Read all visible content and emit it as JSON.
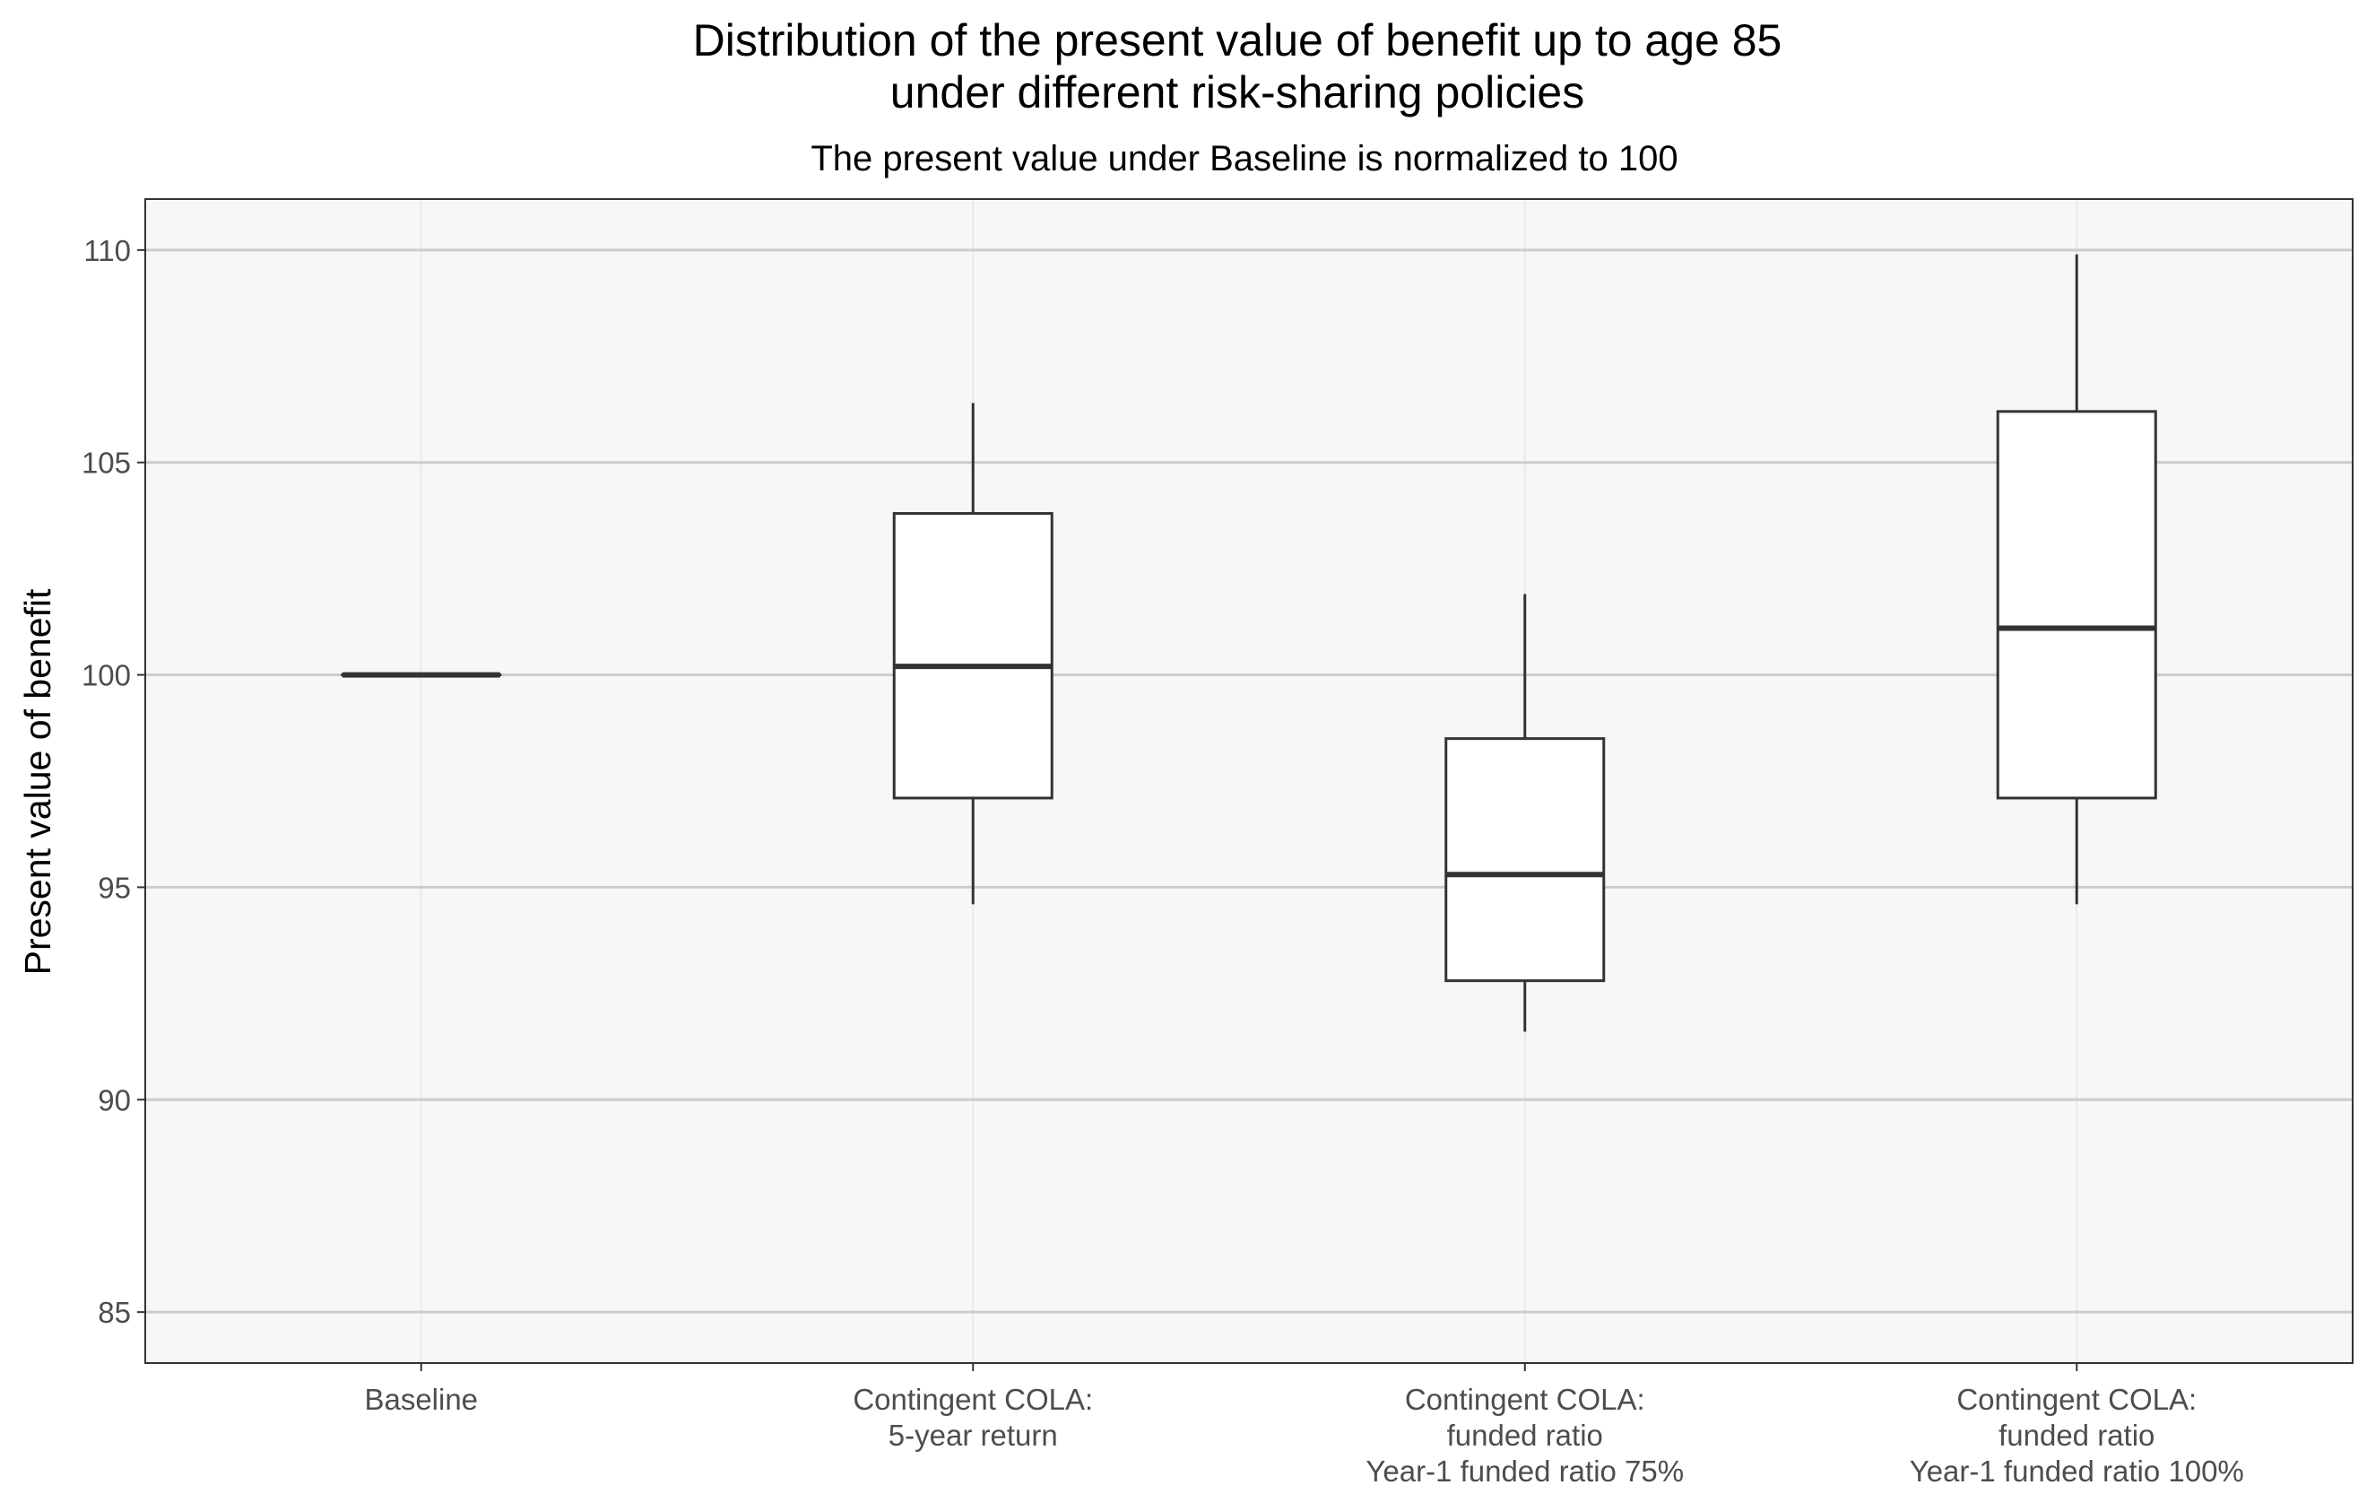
{
  "chart_data": {
    "type": "box",
    "title_lines": [
      "Distribution of the present value of benefit up to age 85",
      "under different risk-sharing policies"
    ],
    "subtitle": "The present value under Baseline is normalized to 100",
    "xlabel": "",
    "ylabel": "Present value of benefit",
    "ylim": [
      83.8,
      111.2
    ],
    "yticks": [
      85,
      90,
      95,
      100,
      105,
      110
    ],
    "grid": true,
    "colors": {
      "panel_background": "#f7f7f7",
      "major_grid": "#cccccc",
      "minor_grid": "#e6e6e6",
      "box_fill": "#ffffff",
      "box_line": "#333333",
      "panel_border": "#333333"
    },
    "categories": [
      {
        "lines": [
          "Baseline"
        ]
      },
      {
        "lines": [
          "Contingent COLA:",
          "5-year return"
        ]
      },
      {
        "lines": [
          "Contingent COLA:",
          "funded ratio",
          "Year-1 funded ratio 75%"
        ]
      },
      {
        "lines": [
          "Contingent COLA:",
          "funded ratio",
          "Year-1 funded ratio 100%"
        ]
      }
    ],
    "boxes": [
      {
        "min": 100.0,
        "q1": 100.0,
        "median": 100.0,
        "q3": 100.0,
        "max": 100.0
      },
      {
        "min": 94.6,
        "q1": 97.1,
        "median": 100.2,
        "q3": 103.8,
        "max": 106.4
      },
      {
        "min": 91.6,
        "q1": 92.8,
        "median": 95.3,
        "q3": 98.5,
        "max": 101.9
      },
      {
        "min": 94.6,
        "q1": 97.1,
        "median": 101.1,
        "q3": 106.2,
        "max": 109.9
      }
    ]
  }
}
